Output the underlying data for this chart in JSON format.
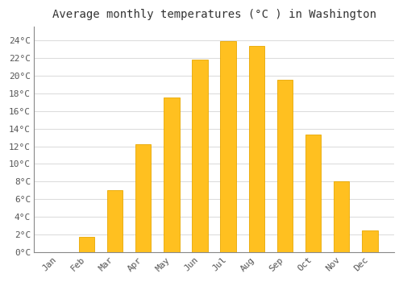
{
  "title": "Average monthly temperatures (°C ) in Washington",
  "months": [
    "Jan",
    "Feb",
    "Mar",
    "Apr",
    "May",
    "Jun",
    "Jul",
    "Aug",
    "Sep",
    "Oct",
    "Nov",
    "Dec"
  ],
  "temperatures": [
    0,
    1.8,
    7.0,
    12.2,
    17.5,
    21.8,
    23.9,
    23.3,
    19.5,
    13.3,
    8.0,
    2.5
  ],
  "bar_color": "#FFC020",
  "bar_edge_color": "#E8A800",
  "ylim": [
    0,
    25.5
  ],
  "yticks": [
    0,
    2,
    4,
    6,
    8,
    10,
    12,
    14,
    16,
    18,
    20,
    22,
    24
  ],
  "ytick_labels": [
    "0°C",
    "2°C",
    "4°C",
    "6°C",
    "8°C",
    "10°C",
    "12°C",
    "14°C",
    "16°C",
    "18°C",
    "20°C",
    "22°C",
    "24°C"
  ],
  "figure_bg_color": "#FFFFFF",
  "plot_bg_color": "#FFFFFF",
  "grid_color": "#DDDDDD",
  "title_fontsize": 10,
  "tick_fontsize": 8,
  "font_family": "monospace",
  "bar_width": 0.55
}
